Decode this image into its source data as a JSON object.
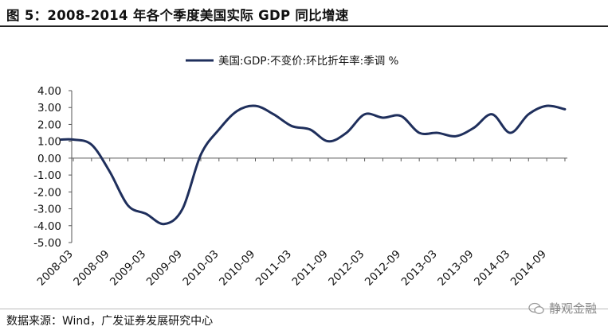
{
  "header": {
    "title": "图 5：2008-2014 年各个季度美国实际 GDP 同比增速"
  },
  "footer": {
    "source": "数据来源：Wind，广发证券发展研究中心",
    "watermark": "静观金融"
  },
  "colors": {
    "series": "#1f2f5c",
    "axis": "#555555",
    "text": "#111111"
  },
  "chart_data": {
    "type": "line",
    "title": "2008-2014 年各个季度美国实际 GDP 同比增速",
    "xlabel": "",
    "ylabel": "",
    "ylim": [
      -5.0,
      4.0
    ],
    "yticks": [
      "4.00",
      "3.00",
      "2.00",
      "1.00",
      "0.00",
      "-1.00",
      "-2.00",
      "-3.00",
      "-4.00",
      "-5.00"
    ],
    "ytick_values": [
      4,
      3,
      2,
      1,
      0,
      -1,
      -2,
      -3,
      -4,
      -5
    ],
    "x_labels": [
      "2008-03",
      "2008-09",
      "2009-03",
      "2009-09",
      "2010-03",
      "2010-09",
      "2011-03",
      "2011-09",
      "2012-03",
      "2012-09",
      "2013-03",
      "2013-09",
      "2014-03",
      "2014-09"
    ],
    "legend": {
      "position": "top-center",
      "entries": [
        "美国:GDP:不变价:环比折年率:季调 %"
      ]
    },
    "grid": false,
    "series": [
      {
        "name": "美国:GDP:不变价:环比折年率:季调 %",
        "x": [
          "2008-01",
          "2008-03",
          "2008-06",
          "2008-09",
          "2008-12",
          "2009-03",
          "2009-06",
          "2009-09",
          "2009-12",
          "2010-03",
          "2010-06",
          "2010-09",
          "2010-12",
          "2011-03",
          "2011-06",
          "2011-09",
          "2011-12",
          "2012-03",
          "2012-06",
          "2012-09",
          "2012-12",
          "2013-03",
          "2013-06",
          "2013-09",
          "2013-12",
          "2014-03",
          "2014-06",
          "2014-09",
          "2014-12"
        ],
        "values": [
          1.1,
          1.1,
          0.8,
          -0.8,
          -2.8,
          -3.3,
          -3.9,
          -3.0,
          0.2,
          1.7,
          2.8,
          3.1,
          2.6,
          1.9,
          1.7,
          1.0,
          1.5,
          2.6,
          2.4,
          2.5,
          1.5,
          1.5,
          1.3,
          1.8,
          2.6,
          1.5,
          2.6,
          3.1,
          2.9
        ]
      }
    ]
  }
}
